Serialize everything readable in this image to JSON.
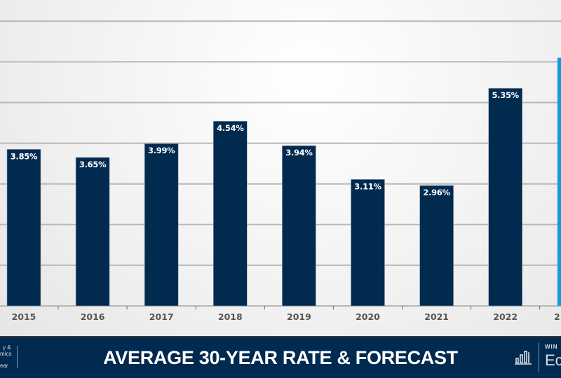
{
  "chart_data": {
    "type": "bar",
    "title": "AVERAGE 30-YEAR RATE & FORECAST",
    "categories": [
      "2015",
      "2016",
      "2017",
      "2018",
      "2019",
      "2020",
      "2021",
      "2022",
      "2"
    ],
    "values": [
      3.85,
      3.65,
      3.99,
      4.54,
      3.94,
      3.11,
      2.96,
      5.35,
      6.1
    ],
    "data_labels": [
      "3.85%",
      "3.65%",
      "3.99%",
      "4.54%",
      "3.94%",
      "3.11%",
      "2.96%",
      "5.35%",
      ""
    ],
    "bar_colors": [
      "#002a4e",
      "#002a4e",
      "#002a4e",
      "#002a4e",
      "#002a4e",
      "#002a4e",
      "#002a4e",
      "#002a4e",
      "#0d9ee0"
    ],
    "ylim": [
      0,
      7
    ],
    "grid": true,
    "xlabel": "",
    "ylabel": ""
  },
  "footer": {
    "left_logo_lines": [
      "y &",
      "mics",
      "ear"
    ],
    "right_logo_small": "WIN",
    "right_logo_large": "Ec",
    "icon": "bar-chart-icon"
  }
}
